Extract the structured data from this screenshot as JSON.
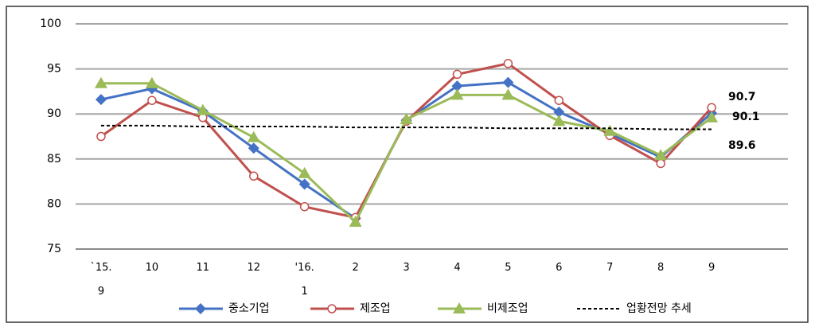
{
  "chart_data": {
    "type": "line",
    "categories": [
      "`15.\n9",
      "10",
      "11",
      "12",
      "'16.\n1",
      "2",
      "3",
      "4",
      "5",
      "6",
      "7",
      "8",
      "9"
    ],
    "series": [
      {
        "name": "중소기업",
        "color": "#4472c4",
        "marker": "diamond",
        "values": [
          91.6,
          92.8,
          90.3,
          86.2,
          82.2,
          78.4,
          89.3,
          93.1,
          93.5,
          90.2,
          87.8,
          85.2,
          90.1
        ]
      },
      {
        "name": "제조업",
        "color": "#c0504d",
        "marker": "circle-open",
        "values": [
          87.5,
          91.5,
          89.6,
          83.1,
          79.7,
          78.5,
          89.2,
          94.4,
          95.6,
          91.5,
          87.6,
          84.5,
          90.7
        ]
      },
      {
        "name": "비제조업",
        "color": "#9bbb59",
        "marker": "triangle",
        "values": [
          93.4,
          93.4,
          90.4,
          87.4,
          83.4,
          78.0,
          89.4,
          92.1,
          92.1,
          89.2,
          88.1,
          85.4,
          89.6
        ]
      },
      {
        "name": "업황전망 추세",
        "color": "#000000",
        "dashed": true,
        "values": [
          88.7,
          88.7,
          88.6,
          88.6,
          88.6,
          88.5,
          88.5,
          88.5,
          88.4,
          88.4,
          88.4,
          88.3,
          88.3
        ]
      }
    ],
    "annotations": [
      "90.7",
      "90.1",
      "89.6"
    ],
    "ylim": [
      75,
      100
    ],
    "yticks": [
      75,
      80,
      85,
      90,
      95,
      100
    ],
    "grid": true,
    "legend": "bottom"
  }
}
